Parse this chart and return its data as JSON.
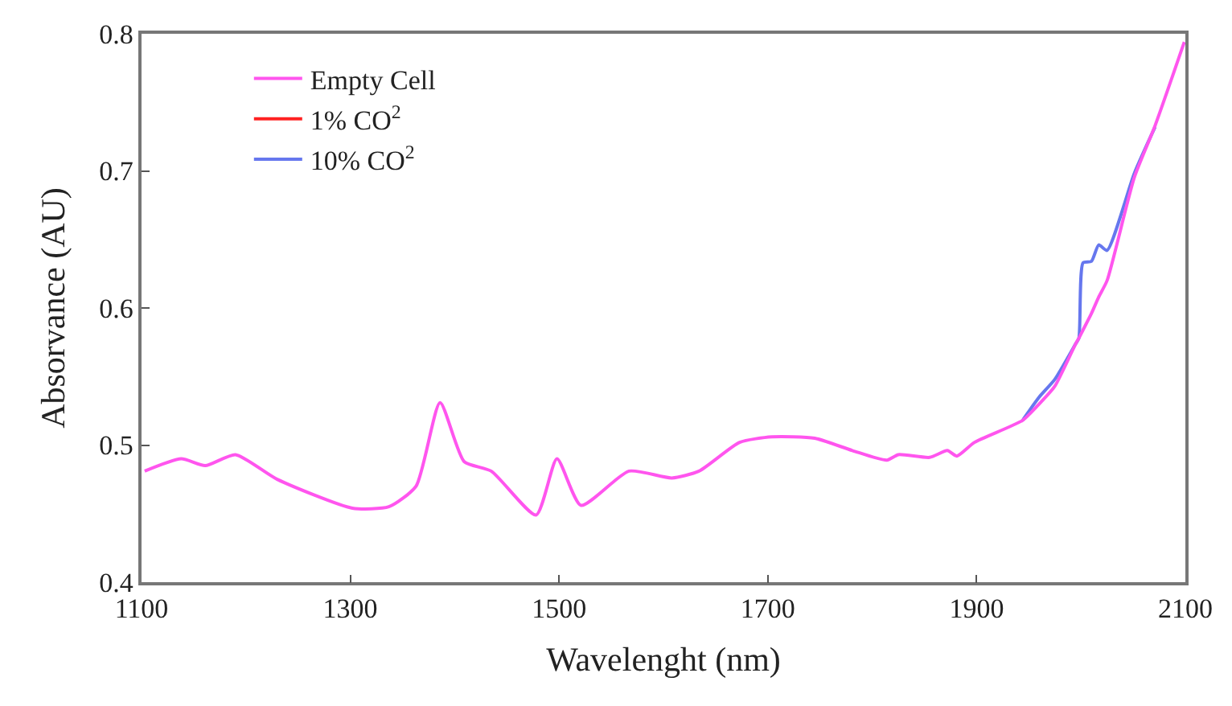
{
  "chart_data": {
    "type": "line",
    "xlabel": "Wavelenght (nm)",
    "ylabel": "Absorvance (AU)",
    "x": [
      1103,
      1138,
      1161,
      1190,
      1230,
      1302,
      1337,
      1363,
      1386,
      1409,
      1435,
      1478,
      1498,
      1521,
      1567,
      1608,
      1634,
      1673,
      1704,
      1745,
      1781,
      1814,
      1825,
      1855,
      1872,
      1881,
      1898,
      1944,
      1960,
      1975,
      1995,
      1998,
      2002,
      2010,
      2017,
      2025,
      2051,
      2071,
      2099
    ],
    "series": [
      {
        "name": "Empty Cell",
        "color": "#ff55ee",
        "values": [
          0.481,
          0.49,
          0.485,
          0.493,
          0.475,
          0.454,
          0.455,
          0.47,
          0.531,
          0.488,
          0.481,
          0.449,
          0.49,
          0.456,
          0.481,
          0.476,
          0.481,
          0.502,
          0.506,
          0.505,
          0.496,
          0.489,
          0.493,
          0.491,
          0.496,
          0.492,
          0.502,
          0.518,
          0.53,
          0.543,
          0.574,
          0.578,
          0.584,
          0.596,
          0.608,
          0.62,
          0.695,
          0.733,
          0.794
        ]
      },
      {
        "name": "1% CO$^{2}$",
        "color": "#ff2222",
        "values": [
          null,
          null,
          null,
          null,
          null,
          null,
          null,
          null,
          null,
          null,
          null,
          null,
          null,
          null,
          null,
          null,
          null,
          null,
          null,
          null,
          null,
          null,
          null,
          null,
          null,
          null,
          null,
          null,
          null,
          null,
          null,
          null,
          null,
          null,
          null,
          null,
          null,
          null,
          null
        ]
      },
      {
        "name": "10% CO$^{2}$",
        "color": "#6677ee",
        "values": [
          null,
          null,
          null,
          null,
          null,
          null,
          null,
          null,
          null,
          null,
          null,
          null,
          null,
          null,
          null,
          null,
          null,
          null,
          null,
          null,
          null,
          null,
          null,
          null,
          null,
          null,
          null,
          0.518,
          0.535,
          0.548,
          0.574,
          0.578,
          0.633,
          0.634,
          0.646,
          0.642,
          0.698,
          0.732,
          null
        ]
      }
    ],
    "xlim": [
      1100,
      2100
    ],
    "xticks": [
      1100,
      1300,
      1500,
      1700,
      1900,
      2100
    ],
    "ylim": [
      0.4,
      0.8
    ],
    "yticks": [
      0.4,
      0.5,
      0.6,
      0.7,
      0.8
    ],
    "legend": "top left",
    "marker": "none",
    "line_style": "solid"
  }
}
